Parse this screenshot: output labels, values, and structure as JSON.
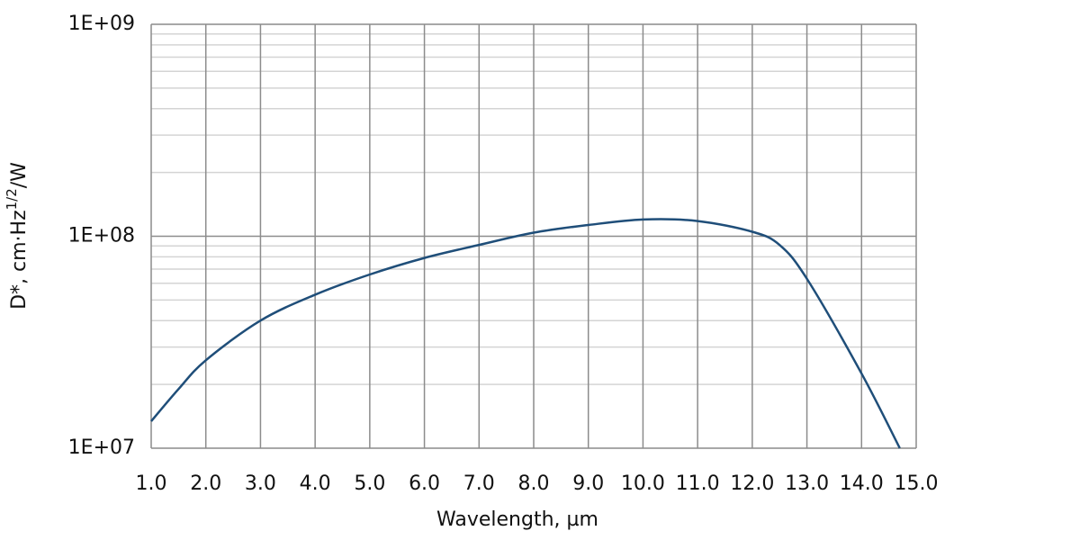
{
  "chart_data": {
    "type": "line",
    "xlabel": "Wavelength, µm",
    "ylabel_parts": [
      "D*, cm·Hz",
      "1/2",
      "/W"
    ],
    "x": [
      1.0,
      1.5,
      2.0,
      3.0,
      4.0,
      5.0,
      6.0,
      7.0,
      8.0,
      9.0,
      10.0,
      11.0,
      12.0,
      12.5,
      13.0,
      14.0,
      14.7
    ],
    "series": [
      {
        "color": "#1f4e79",
        "values": [
          13400000,
          19000000,
          26000000,
          40000000,
          53000000,
          66000000,
          79000000,
          91000000,
          104000000,
          113000000,
          120000000,
          118000000,
          105000000,
          91000000,
          63000000,
          22500000,
          10000000
        ]
      }
    ],
    "xlim": [
      1,
      15
    ],
    "xticks": [
      {
        "value": 1,
        "label": "1.0"
      },
      {
        "value": 2,
        "label": "2.0"
      },
      {
        "value": 3,
        "label": "3.0"
      },
      {
        "value": 4,
        "label": "4.0"
      },
      {
        "value": 5,
        "label": "5.0"
      },
      {
        "value": 6,
        "label": "6.0"
      },
      {
        "value": 7,
        "label": "7.0"
      },
      {
        "value": 8,
        "label": "8.0"
      },
      {
        "value": 9,
        "label": "9.0"
      },
      {
        "value": 10,
        "label": "10.0"
      },
      {
        "value": 11,
        "label": "11.0"
      },
      {
        "value": 12,
        "label": "12.0"
      },
      {
        "value": 13,
        "label": "13.0"
      },
      {
        "value": 14,
        "label": "14.0"
      },
      {
        "value": 15,
        "label": "15.0"
      }
    ],
    "ylim": [
      10000000,
      1000000000
    ],
    "yticks": [
      {
        "value": 10000000,
        "label": "1E+07"
      },
      {
        "value": 100000000,
        "label": "1E+08"
      },
      {
        "value": 1000000000,
        "label": "1E+09"
      }
    ],
    "ylog": true,
    "grid": true,
    "minor_grid": true
  }
}
